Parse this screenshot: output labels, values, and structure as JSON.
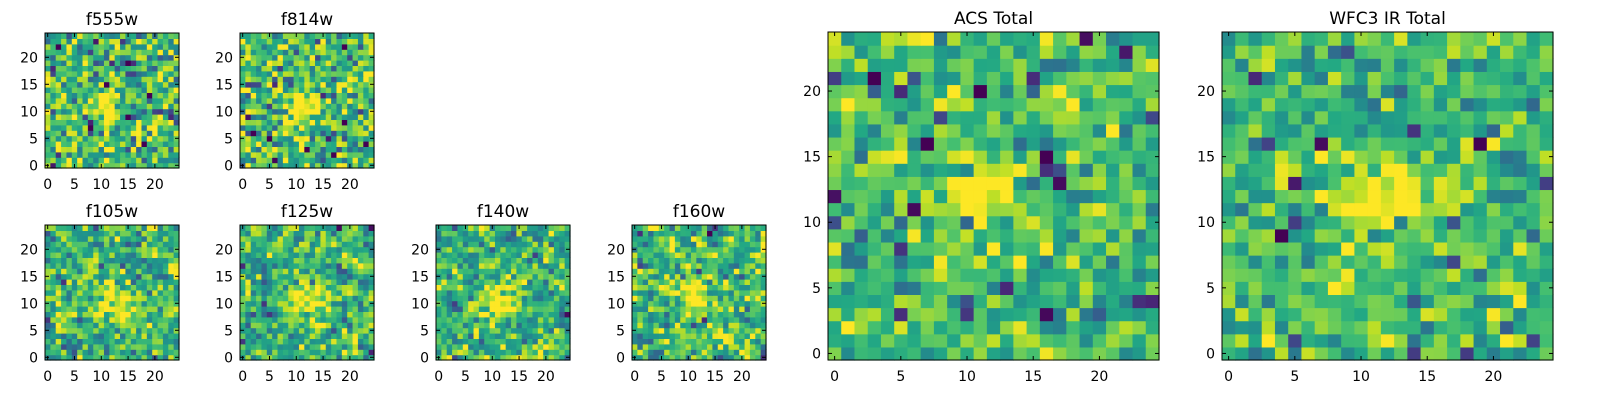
{
  "colormap": "viridis",
  "colors": {
    "low": "#440154",
    "mid": "#21908c",
    "high": "#fde725",
    "frame": "#000000",
    "background": "#ffffff"
  },
  "chart_data": [
    {
      "type": "heatmap",
      "title": "f555w",
      "xlabel": "",
      "ylabel": "",
      "xlim": [
        0,
        25
      ],
      "ylim": [
        0,
        25
      ],
      "xticks": [
        0,
        5,
        10,
        15,
        20
      ],
      "yticks": [
        0,
        5,
        10,
        15,
        20
      ],
      "grid": [
        25,
        25
      ],
      "grid_lines": false,
      "source_peak": {
        "x": 11,
        "y": 11,
        "sigma": 1.8,
        "amplitude": 0.45
      },
      "pixel_noise": 0.42,
      "smoothing": 0,
      "seed": 555
    },
    {
      "type": "heatmap",
      "title": "f814w",
      "xlabel": "",
      "ylabel": "",
      "xlim": [
        0,
        25
      ],
      "ylim": [
        0,
        25
      ],
      "xticks": [
        0,
        5,
        10,
        15,
        20
      ],
      "yticks": [
        0,
        5,
        10,
        15,
        20
      ],
      "grid": [
        25,
        25
      ],
      "grid_lines": false,
      "source_peak": {
        "x": 11,
        "y": 11,
        "sigma": 1.8,
        "amplitude": 0.45
      },
      "pixel_noise": 0.42,
      "smoothing": 0,
      "seed": 814
    },
    {
      "type": "heatmap",
      "title": "f105w",
      "xlabel": "",
      "ylabel": "",
      "xlim": [
        0,
        25
      ],
      "ylim": [
        0,
        25
      ],
      "xticks": [
        0,
        5,
        10,
        15,
        20
      ],
      "yticks": [
        0,
        5,
        10,
        15,
        20
      ],
      "grid": [
        25,
        25
      ],
      "grid_lines": false,
      "source_peak": {
        "x": 11,
        "y": 11,
        "sigma": 2.5,
        "amplitude": 0.35
      },
      "pixel_noise": 0.45,
      "smoothing": 1,
      "seed": 105
    },
    {
      "type": "heatmap",
      "title": "f125w",
      "xlabel": "",
      "ylabel": "",
      "xlim": [
        0,
        25
      ],
      "ylim": [
        0,
        25
      ],
      "xticks": [
        0,
        5,
        10,
        15,
        20
      ],
      "yticks": [
        0,
        5,
        10,
        15,
        20
      ],
      "grid": [
        25,
        25
      ],
      "grid_lines": false,
      "source_peak": {
        "x": 11,
        "y": 11,
        "sigma": 2.5,
        "amplitude": 0.35
      },
      "pixel_noise": 0.45,
      "smoothing": 1,
      "seed": 125
    },
    {
      "type": "heatmap",
      "title": "f140w",
      "xlabel": "",
      "ylabel": "",
      "xlim": [
        0,
        25
      ],
      "ylim": [
        0,
        25
      ],
      "xticks": [
        0,
        5,
        10,
        15,
        20
      ],
      "yticks": [
        0,
        5,
        10,
        15,
        20
      ],
      "grid": [
        25,
        25
      ],
      "grid_lines": false,
      "source_peak": {
        "x": 11,
        "y": 11,
        "sigma": 2.5,
        "amplitude": 0.35
      },
      "pixel_noise": 0.45,
      "smoothing": 1,
      "seed": 140
    },
    {
      "type": "heatmap",
      "title": "f160w",
      "xlabel": "",
      "ylabel": "",
      "xlim": [
        0,
        25
      ],
      "ylim": [
        0,
        25
      ],
      "xticks": [
        0,
        5,
        10,
        15,
        20
      ],
      "yticks": [
        0,
        5,
        10,
        15,
        20
      ],
      "grid": [
        25,
        25
      ],
      "grid_lines": false,
      "source_peak": {
        "x": 11,
        "y": 11,
        "sigma": 2.5,
        "amplitude": 0.35
      },
      "pixel_noise": 0.45,
      "smoothing": 1,
      "seed": 160
    },
    {
      "type": "heatmap",
      "title": "ACS Total",
      "xlabel": "",
      "ylabel": "",
      "xlim": [
        0,
        25
      ],
      "ylim": [
        0,
        25
      ],
      "xticks": [
        0,
        5,
        10,
        15,
        20
      ],
      "yticks": [
        0,
        5,
        10,
        15,
        20
      ],
      "grid": [
        25,
        25
      ],
      "grid_lines": false,
      "source_peak": {
        "x": 11,
        "y": 12,
        "sigma": 1.6,
        "amplitude": 0.5
      },
      "pixel_noise": 0.3,
      "smoothing": 0,
      "seed": 777
    },
    {
      "type": "heatmap",
      "title": "WFC3 IR Total",
      "xlabel": "",
      "ylabel": "",
      "xlim": [
        0,
        25
      ],
      "ylim": [
        0,
        25
      ],
      "xticks": [
        0,
        5,
        10,
        15,
        20
      ],
      "yticks": [
        0,
        5,
        10,
        15,
        20
      ],
      "grid": [
        25,
        25
      ],
      "grid_lines": false,
      "source_peak": {
        "x": 12,
        "y": 12,
        "sigma": 2.2,
        "amplitude": 0.4
      },
      "pixel_noise": 0.28,
      "smoothing": 0,
      "seed": 999
    }
  ]
}
